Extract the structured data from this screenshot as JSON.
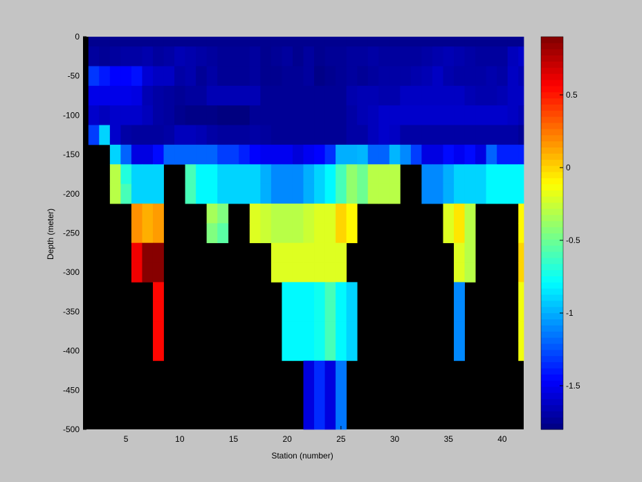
{
  "chart_data": {
    "type": "heatmap",
    "title": "",
    "xlabel": "Station (number)",
    "ylabel": "Depth (meter)",
    "xlim": [
      1,
      42
    ],
    "ylim": [
      -500,
      0
    ],
    "xticks": [
      5,
      10,
      15,
      20,
      25,
      30,
      35,
      40
    ],
    "yticks": [
      0,
      -50,
      -100,
      -150,
      -200,
      -250,
      -300,
      -350,
      -400,
      -450,
      -500
    ],
    "colorbar": {
      "colormap": "jet",
      "clim": [
        -1.8,
        0.9
      ],
      "ticks": [
        0.5,
        0,
        -0.5,
        -1,
        -1.5
      ]
    },
    "no_data_color": "#000000",
    "stations": [
      2,
      3,
      4,
      5,
      6,
      7,
      8,
      9,
      10,
      11,
      12,
      13,
      14,
      15,
      16,
      17,
      18,
      19,
      20,
      21,
      22,
      23,
      24,
      25,
      26,
      27,
      28,
      29,
      30,
      31,
      32,
      33,
      34,
      35,
      36,
      37,
      38,
      39,
      40,
      41,
      42
    ],
    "depths": [
      0,
      -25,
      -50,
      -75,
      -100,
      -125,
      -150,
      -175,
      -200,
      -225,
      -250,
      -275,
      -300,
      -325,
      -350,
      -375,
      -400,
      -425,
      -450,
      -475,
      -500
    ],
    "values": [
      [
        -1.76,
        -1.76,
        -1.76,
        -1.76,
        -1.76,
        -1.76,
        -1.76,
        -1.76,
        -1.76,
        -1.76,
        -1.76,
        -1.76,
        -1.76,
        -1.76,
        -1.76,
        -1.76,
        -1.76,
        -1.76,
        -1.76,
        -1.76,
        -1.76,
        -1.76,
        -1.76,
        -1.76,
        -1.76,
        -1.76,
        -1.76,
        -1.76,
        -1.76,
        -1.76,
        -1.76,
        -1.76,
        -1.76,
        -1.76,
        -1.76,
        -1.76,
        -1.76,
        -1.76,
        -1.76,
        -1.76,
        -1.76
      ],
      [
        -1.72,
        -1.74,
        -1.72,
        -1.7,
        -1.7,
        -1.68,
        -1.72,
        -1.7,
        -1.66,
        -1.68,
        -1.7,
        -1.72,
        -1.74,
        -1.74,
        -1.74,
        -1.72,
        -1.76,
        -1.74,
        -1.72,
        -1.76,
        -1.72,
        -1.76,
        -1.74,
        -1.74,
        -1.72,
        -1.72,
        -1.7,
        -1.72,
        -1.72,
        -1.72,
        -1.72,
        -1.7,
        -1.68,
        -1.66,
        -1.68,
        -1.7,
        -1.72,
        -1.72,
        -1.72,
        -1.64,
        -1.6
      ],
      [
        -1.32,
        -1.4,
        -1.46,
        -1.46,
        -1.42,
        -1.58,
        -1.62,
        -1.62,
        -1.7,
        -1.68,
        -1.74,
        -1.7,
        -1.74,
        -1.74,
        -1.74,
        -1.72,
        -1.76,
        -1.76,
        -1.74,
        -1.74,
        -1.72,
        -1.78,
        -1.76,
        -1.74,
        -1.72,
        -1.74,
        -1.72,
        -1.7,
        -1.7,
        -1.7,
        -1.68,
        -1.66,
        -1.62,
        -1.68,
        -1.7,
        -1.7,
        -1.7,
        -1.68,
        -1.7,
        -1.62,
        -1.66
      ],
      [
        -1.52,
        -1.52,
        -1.52,
        -1.52,
        -1.54,
        -1.66,
        -1.7,
        -1.72,
        -1.74,
        -1.72,
        -1.72,
        -1.66,
        -1.66,
        -1.66,
        -1.66,
        -1.66,
        -1.74,
        -1.74,
        -1.74,
        -1.74,
        -1.74,
        -1.74,
        -1.74,
        -1.74,
        -1.68,
        -1.66,
        -1.66,
        -1.68,
        -1.68,
        -1.62,
        -1.62,
        -1.62,
        -1.62,
        -1.62,
        -1.62,
        -1.66,
        -1.68,
        -1.68,
        -1.66,
        -1.62,
        -1.62
      ],
      [
        -1.6,
        -1.64,
        -1.6,
        -1.6,
        -1.6,
        -1.64,
        -1.7,
        -1.72,
        -1.76,
        -1.78,
        -1.78,
        -1.78,
        -1.8,
        -1.82,
        -1.8,
        -1.74,
        -1.74,
        -1.74,
        -1.74,
        -1.74,
        -1.74,
        -1.74,
        -1.74,
        -1.74,
        -1.7,
        -1.66,
        -1.64,
        -1.6,
        -1.6,
        -1.6,
        -1.6,
        -1.6,
        -1.6,
        -1.6,
        -1.6,
        -1.6,
        -1.6,
        -1.6,
        -1.6,
        -1.62,
        -1.66
      ],
      [
        -1.3,
        -0.9,
        -1.6,
        -1.7,
        -1.72,
        -1.72,
        -1.72,
        -1.7,
        -1.64,
        -1.64,
        -1.66,
        -1.7,
        -1.72,
        -1.72,
        -1.72,
        -1.7,
        -1.72,
        -1.74,
        -1.74,
        -1.74,
        -1.74,
        -1.74,
        -1.74,
        -1.74,
        -1.7,
        -1.7,
        -1.64,
        -1.6,
        -1.62,
        -1.7,
        -1.7,
        -1.7,
        -1.7,
        -1.7,
        -1.7,
        -1.7,
        -1.7,
        -1.7,
        -1.7,
        -1.7,
        -1.74
      ],
      [
        null,
        null,
        -0.9,
        -1.2,
        -1.54,
        -1.54,
        -1.44,
        -1.2,
        -1.2,
        -1.2,
        -1.2,
        -1.2,
        -1.3,
        -1.3,
        -1.38,
        -1.46,
        -1.5,
        -1.5,
        -1.5,
        -1.56,
        -1.5,
        -1.46,
        -1.34,
        -1.0,
        -1.0,
        -0.98,
        -1.2,
        -1.2,
        -0.98,
        -1.1,
        -1.3,
        -1.54,
        -1.54,
        -1.44,
        -1.5,
        -1.44,
        -1.54,
        -1.2,
        -1.38,
        -1.38,
        -1.38
      ],
      [
        null,
        null,
        -0.3,
        -0.7,
        -0.9,
        -0.9,
        -0.9,
        null,
        null,
        -0.6,
        -0.8,
        -0.8,
        -0.9,
        -0.9,
        -0.9,
        -0.9,
        -1.0,
        -1.1,
        -1.1,
        -1.1,
        -1.0,
        -0.9,
        -0.8,
        -0.6,
        -0.4,
        -0.5,
        -0.3,
        -0.3,
        -0.3,
        null,
        null,
        -1.1,
        -1.1,
        -1.0,
        -0.9,
        -0.9,
        -0.9,
        -0.8,
        -0.8,
        -0.8,
        -0.8
      ],
      [
        null,
        null,
        -0.3,
        -0.6,
        -0.9,
        -0.9,
        -0.9,
        null,
        null,
        -0.6,
        -0.8,
        -0.8,
        -0.9,
        -0.9,
        -0.9,
        -0.9,
        -1.0,
        -1.1,
        -1.1,
        -1.1,
        -1.0,
        -0.9,
        -0.8,
        -0.6,
        -0.4,
        -0.5,
        -0.3,
        -0.3,
        -0.3,
        null,
        null,
        -1.1,
        -1.1,
        -1.0,
        -0.9,
        -0.9,
        -0.9,
        -0.8,
        -0.8,
        -0.8,
        -0.8
      ],
      [
        null,
        null,
        null,
        null,
        0.18,
        0.1,
        0.15,
        null,
        null,
        null,
        null,
        -0.35,
        -0.45,
        null,
        null,
        -0.2,
        -0.25,
        -0.3,
        -0.3,
        -0.3,
        -0.25,
        -0.2,
        -0.2,
        0.0,
        -0.1,
        null,
        null,
        null,
        null,
        null,
        null,
        null,
        null,
        -0.2,
        -0.05,
        -0.3,
        null,
        null,
        null,
        null,
        -0.1
      ],
      [
        null,
        null,
        null,
        null,
        0.18,
        0.1,
        0.15,
        null,
        null,
        null,
        null,
        -0.45,
        -0.55,
        null,
        null,
        -0.2,
        -0.25,
        -0.3,
        -0.3,
        -0.3,
        -0.25,
        -0.2,
        -0.2,
        0.0,
        -0.1,
        null,
        null,
        null,
        null,
        null,
        null,
        null,
        null,
        -0.2,
        -0.05,
        -0.3,
        null,
        null,
        null,
        null,
        -0.1
      ],
      [
        null,
        null,
        null,
        null,
        0.6,
        0.88,
        0.88,
        null,
        null,
        null,
        null,
        null,
        null,
        null,
        null,
        null,
        null,
        -0.2,
        -0.2,
        -0.2,
        -0.2,
        -0.2,
        -0.2,
        -0.2,
        null,
        null,
        null,
        null,
        null,
        null,
        null,
        null,
        null,
        null,
        -0.2,
        -0.3,
        null,
        null,
        null,
        null,
        0.0
      ],
      [
        null,
        null,
        null,
        null,
        0.6,
        0.88,
        0.88,
        null,
        null,
        null,
        null,
        null,
        null,
        null,
        null,
        null,
        null,
        -0.2,
        -0.2,
        -0.2,
        -0.2,
        -0.2,
        -0.2,
        -0.2,
        null,
        null,
        null,
        null,
        null,
        null,
        null,
        null,
        null,
        null,
        -0.2,
        -0.3,
        null,
        null,
        null,
        null,
        0.0
      ],
      [
        null,
        null,
        null,
        null,
        null,
        null,
        0.55,
        null,
        null,
        null,
        null,
        null,
        null,
        null,
        null,
        null,
        null,
        null,
        -0.8,
        -0.8,
        -0.8,
        -0.75,
        -0.6,
        -0.8,
        -0.9,
        null,
        null,
        null,
        null,
        null,
        null,
        null,
        null,
        null,
        -1.1,
        null,
        null,
        null,
        null,
        null,
        -0.15
      ],
      [
        null,
        null,
        null,
        null,
        null,
        null,
        0.55,
        null,
        null,
        null,
        null,
        null,
        null,
        null,
        null,
        null,
        null,
        null,
        -0.8,
        -0.8,
        -0.8,
        -0.75,
        -0.6,
        -0.8,
        -0.9,
        null,
        null,
        null,
        null,
        null,
        null,
        null,
        null,
        null,
        -1.1,
        null,
        null,
        null,
        null,
        null,
        -0.15
      ],
      [
        null,
        null,
        null,
        null,
        null,
        null,
        0.55,
        null,
        null,
        null,
        null,
        null,
        null,
        null,
        null,
        null,
        null,
        null,
        -0.8,
        -0.8,
        -0.8,
        -0.75,
        -0.6,
        -0.8,
        -0.9,
        null,
        null,
        null,
        null,
        null,
        null,
        null,
        null,
        null,
        -1.1,
        null,
        null,
        null,
        null,
        null,
        -0.15
      ],
      [
        null,
        null,
        null,
        null,
        null,
        null,
        0.55,
        null,
        null,
        null,
        null,
        null,
        null,
        null,
        null,
        null,
        null,
        null,
        -0.8,
        -0.8,
        -0.8,
        -0.75,
        -0.6,
        -0.8,
        -0.9,
        null,
        null,
        null,
        null,
        null,
        null,
        null,
        null,
        null,
        -1.1,
        null,
        null,
        null,
        null,
        null,
        -0.15
      ],
      [
        null,
        null,
        null,
        null,
        null,
        null,
        null,
        null,
        null,
        null,
        null,
        null,
        null,
        null,
        null,
        null,
        null,
        null,
        null,
        null,
        -1.55,
        -1.35,
        -1.55,
        -1.15,
        null,
        null,
        null,
        null,
        null,
        null,
        null,
        null,
        null,
        null,
        null,
        null,
        null,
        null,
        null,
        null,
        null
      ],
      [
        null,
        null,
        null,
        null,
        null,
        null,
        null,
        null,
        null,
        null,
        null,
        null,
        null,
        null,
        null,
        null,
        null,
        null,
        null,
        null,
        -1.55,
        -1.35,
        -1.55,
        -1.15,
        null,
        null,
        null,
        null,
        null,
        null,
        null,
        null,
        null,
        null,
        null,
        null,
        null,
        null,
        null,
        null,
        null
      ],
      [
        null,
        null,
        null,
        null,
        null,
        null,
        null,
        null,
        null,
        null,
        null,
        null,
        null,
        null,
        null,
        null,
        null,
        null,
        null,
        null,
        -1.55,
        -1.35,
        -1.55,
        -1.15,
        null,
        null,
        null,
        null,
        null,
        null,
        null,
        null,
        null,
        null,
        null,
        null,
        null,
        null,
        null,
        null,
        null
      ],
      [
        null,
        null,
        null,
        null,
        null,
        null,
        null,
        null,
        null,
        null,
        null,
        null,
        null,
        null,
        null,
        null,
        null,
        null,
        null,
        null,
        -1.55,
        -1.35,
        -1.55,
        -1.15,
        null,
        null,
        null,
        null,
        null,
        null,
        null,
        null,
        null,
        null,
        null,
        null,
        null,
        null,
        null,
        null,
        null
      ]
    ]
  }
}
